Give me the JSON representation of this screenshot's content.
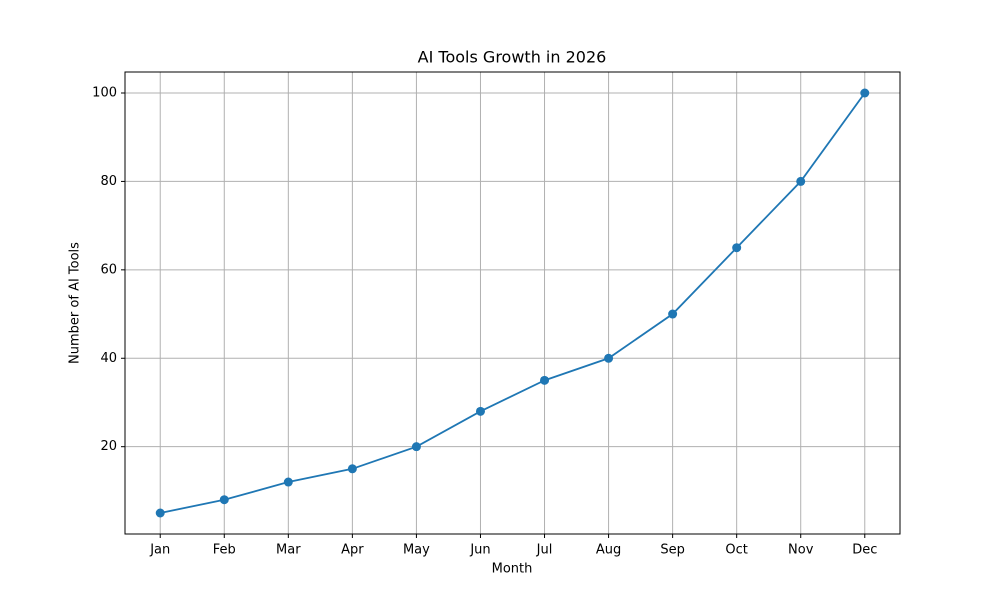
{
  "chart_data": {
    "type": "line",
    "title": "AI Tools Growth in 2026",
    "xlabel": "Month",
    "ylabel": "Number of AI Tools",
    "categories": [
      "Jan",
      "Feb",
      "Mar",
      "Apr",
      "May",
      "Jun",
      "Jul",
      "Aug",
      "Sep",
      "Oct",
      "Nov",
      "Dec"
    ],
    "values": [
      5,
      8,
      12,
      15,
      20,
      28,
      35,
      40,
      50,
      65,
      80,
      100
    ],
    "color": "#1f77b4",
    "marker": "circle",
    "ylim": [
      0.25,
      104.75
    ],
    "yticks": [
      20,
      40,
      60,
      80,
      100
    ],
    "grid": true
  }
}
